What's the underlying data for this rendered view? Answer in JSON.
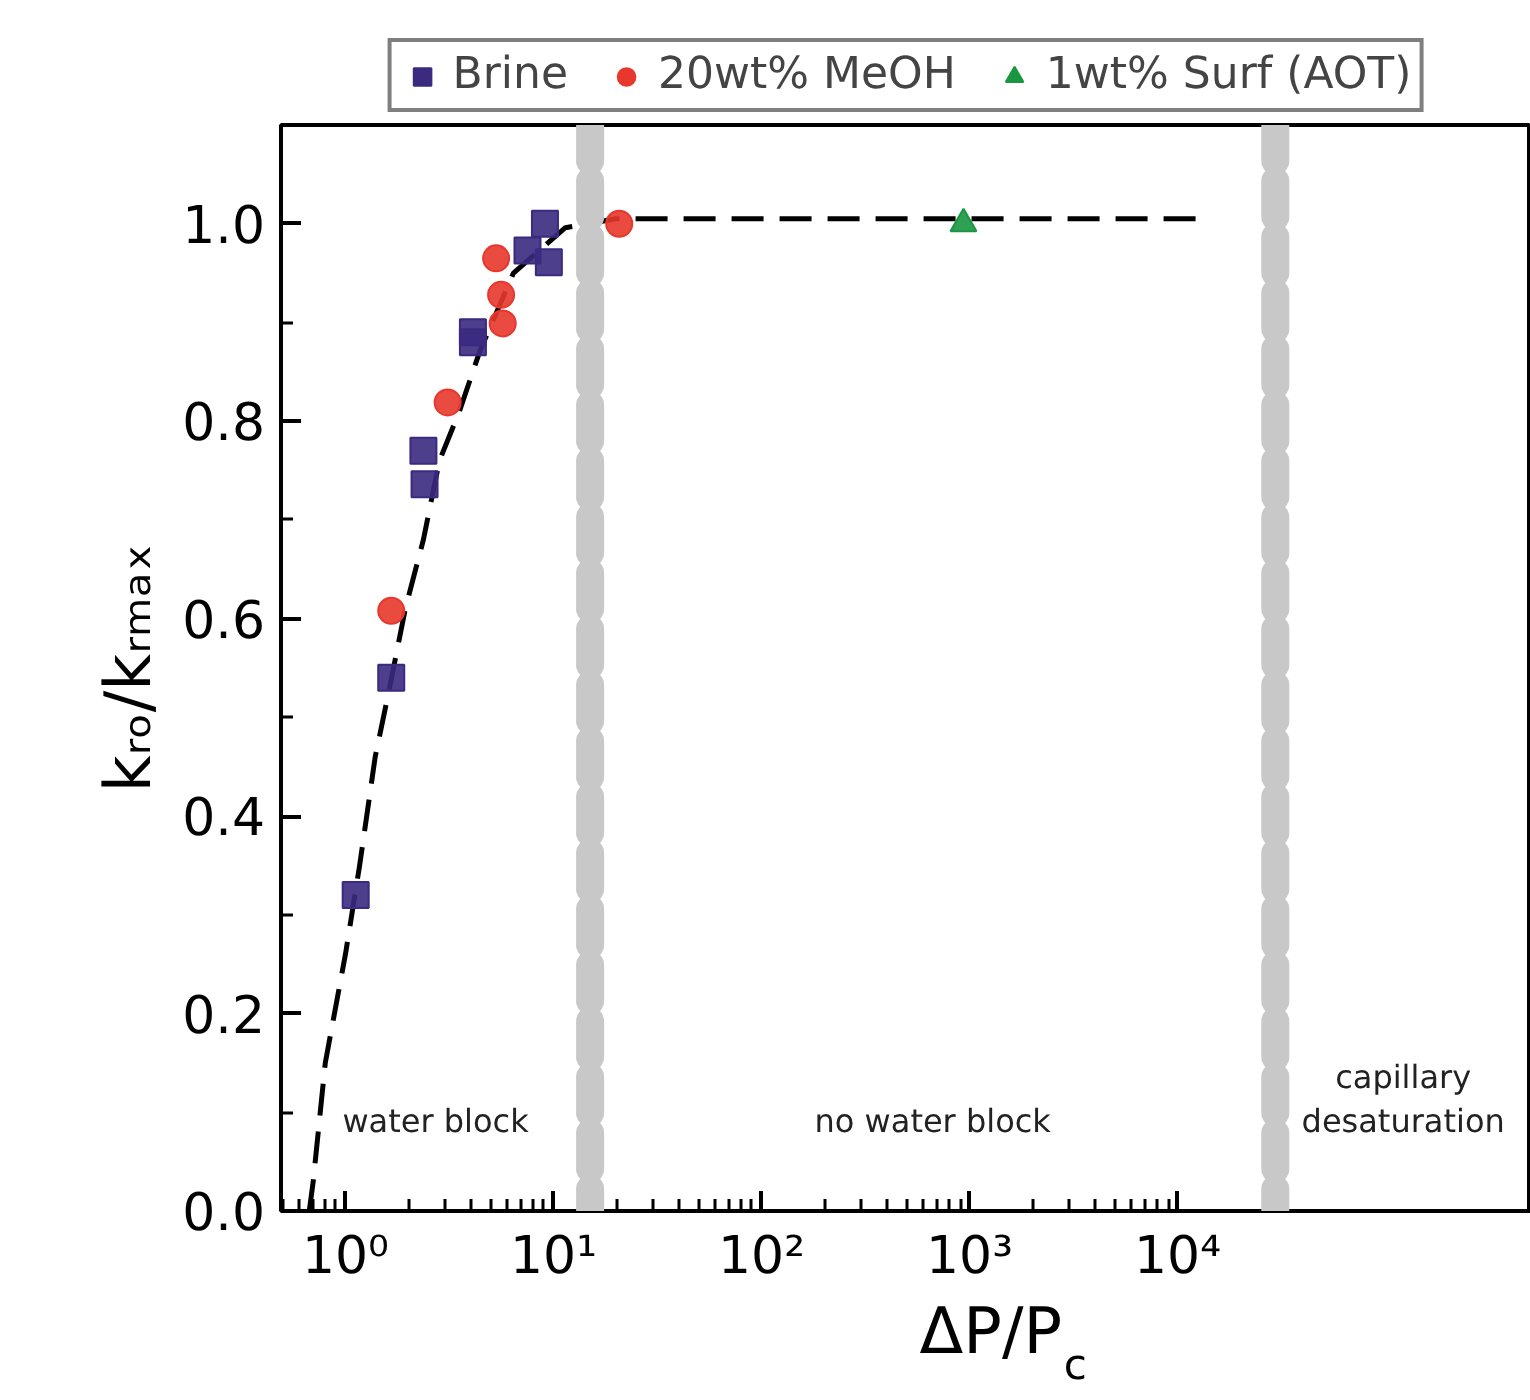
{
  "chart_data": {
    "type": "scatter",
    "xlabel": "ΔP/P$_{c}$",
    "ylabel": "kᵣₒ/kᵣₘₐₓ",
    "log": "x",
    "xlim": [
      0.49,
      500000
    ],
    "ylim": [
      0,
      1.1
    ],
    "xticks": [
      {
        "value": 1,
        "label": "10⁰"
      },
      {
        "value": 10,
        "label": "10¹"
      },
      {
        "value": 100,
        "label": "10²"
      },
      {
        "value": 1000,
        "label": "10³"
      },
      {
        "value": 10000,
        "label": "10⁴"
      }
    ],
    "yticks": [
      {
        "value": 0,
        "label": "0.0"
      },
      {
        "value": 0.2,
        "label": "0.2"
      },
      {
        "value": 0.4,
        "label": "0.4"
      },
      {
        "value": 0.6,
        "label": "0.6"
      },
      {
        "value": 0.8,
        "label": "0.8"
      },
      {
        "value": 1.0,
        "label": "1.0"
      }
    ],
    "grid": false,
    "legend": "top",
    "series": [
      {
        "name": "Brine",
        "color": "#3b2a7f",
        "marker": "square",
        "x": [
          1.12,
          1.66,
          2.37,
          2.4,
          4.1,
          4.1,
          7.5,
          9.1,
          9.5
        ],
        "values": [
          0.32,
          0.54,
          0.77,
          0.736,
          0.88,
          0.89,
          0.973,
          1.0,
          0.961
        ]
      },
      {
        "name": "20wt% MeOH",
        "color": "#e8372c",
        "marker": "circle",
        "x": [
          1.66,
          3.1,
          5.3,
          5.6,
          5.7,
          20.7
        ],
        "values": [
          0.608,
          0.819,
          0.965,
          0.928,
          0.899,
          1.0
        ]
      },
      {
        "name": "1wt% Surf (AOT)",
        "color": "#1a9641",
        "marker": "triangle",
        "x": [
          935
        ],
        "values": [
          1.0
        ]
      },
      {
        "type": "line",
        "color": "#000000",
        "line_style": "dashed",
        "x": [
          0.67,
          0.7,
          0.8,
          1.0,
          1.17,
          1.39,
          1.63,
          1.94,
          2.37,
          2.83,
          3.53,
          4.41,
          6.42,
          11.4,
          20,
          12600
        ],
        "values": [
          0,
          0.03,
          0.15,
          0.26,
          0.35,
          0.46,
          0.53,
          0.61,
          0.68,
          0.76,
          0.81,
          0.87,
          0.95,
          0.996,
          1.005,
          1.005
        ]
      }
    ],
    "ref_lines": [
      {
        "axis": "x",
        "value": 15,
        "label": null,
        "color": "#c8c8c8",
        "line_style": "dashed"
      },
      {
        "axis": "x",
        "value": 29500,
        "label": null,
        "color": "#c8c8c8",
        "line_style": "dashed"
      }
    ],
    "annotations": [
      "water block",
      "no water block",
      "capillary\ndesaturation"
    ]
  }
}
